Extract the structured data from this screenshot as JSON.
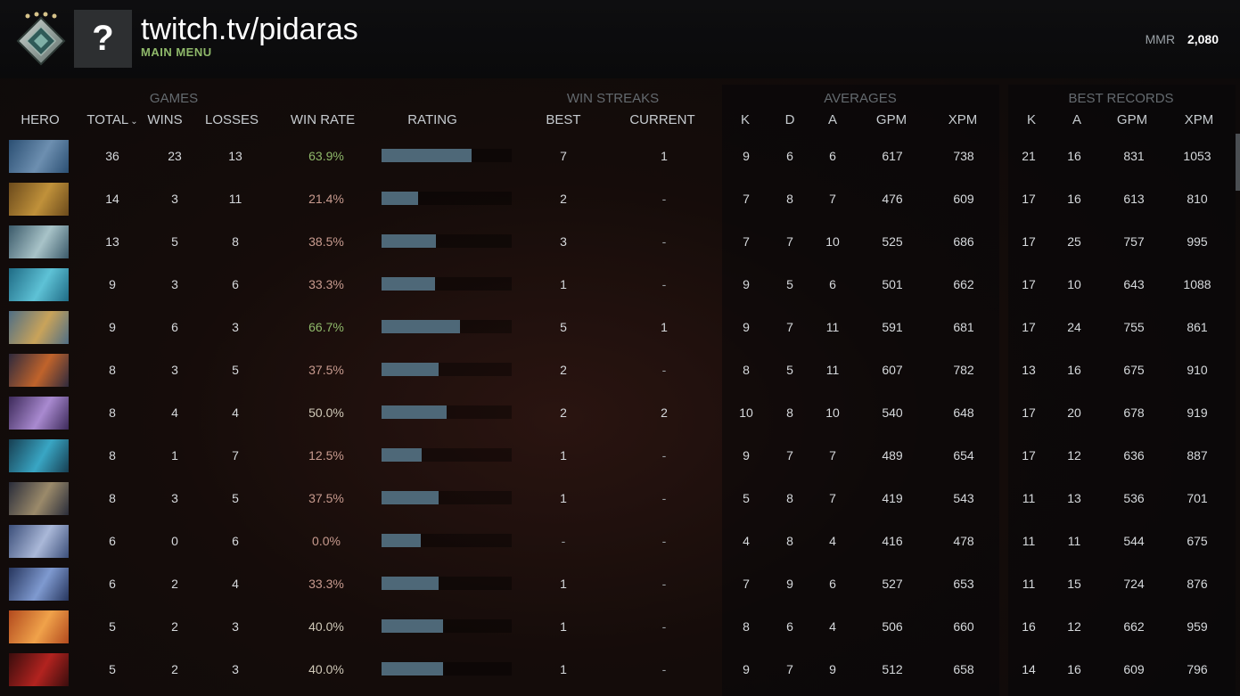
{
  "profile": {
    "username": "twitch.tv/pidaras",
    "menu_link": "MAIN MENU",
    "avatar_glyph": "?",
    "mmr_label": "MMR",
    "mmr_value": "2,080",
    "rank_badge_icon": "rank-medal-icon"
  },
  "groups": {
    "games": "GAMES",
    "win_streaks": "WIN STREAKS",
    "averages": "AVERAGES",
    "best_records": "BEST RECORDS"
  },
  "columns": {
    "hero": "HERO",
    "total": "TOTAL",
    "total_sort_icon": "⌄",
    "wins": "WINS",
    "losses": "LOSSES",
    "win_rate": "WIN RATE",
    "rating": "RATING",
    "best": "BEST",
    "current": "CURRENT",
    "avg_k": "K",
    "avg_d": "D",
    "avg_a": "A",
    "avg_gpm": "GPM",
    "avg_xpm": "XPM",
    "best_k": "K",
    "best_a": "A",
    "best_gpm": "GPM",
    "best_xpm": "XPM"
  },
  "colors": {
    "win_rate_good": "#8fb96a",
    "win_rate_bad": "#c79a8e",
    "rating_bar": "#4e6878"
  },
  "rows": [
    {
      "hero_colors": [
        "#2b4f73",
        "#6d8fb0"
      ],
      "total": "36",
      "wins": "23",
      "losses": "13",
      "win_rate": "63.9%",
      "rating": 0.69,
      "best": "7",
      "current": "1",
      "k": "9",
      "d": "6",
      "a": "6",
      "gpm": "617",
      "xpm": "738",
      "bk": "21",
      "ba": "16",
      "bgpm": "831",
      "bxpm": "1053"
    },
    {
      "hero_colors": [
        "#6b4a1c",
        "#c0913a"
      ],
      "total": "14",
      "wins": "3",
      "losses": "11",
      "win_rate": "21.4%",
      "rating": 0.28,
      "best": "2",
      "current": "-",
      "k": "7",
      "d": "8",
      "a": "7",
      "gpm": "476",
      "xpm": "609",
      "bk": "17",
      "ba": "16",
      "bgpm": "613",
      "bxpm": "810"
    },
    {
      "hero_colors": [
        "#3b5a6a",
        "#a8c3c8"
      ],
      "total": "13",
      "wins": "5",
      "losses": "8",
      "win_rate": "38.5%",
      "rating": 0.42,
      "best": "3",
      "current": "-",
      "k": "7",
      "d": "7",
      "a": "10",
      "gpm": "525",
      "xpm": "686",
      "bk": "17",
      "ba": "25",
      "bgpm": "757",
      "bxpm": "995"
    },
    {
      "hero_colors": [
        "#1f6b85",
        "#5ec2d6"
      ],
      "total": "9",
      "wins": "3",
      "losses": "6",
      "win_rate": "33.3%",
      "rating": 0.41,
      "best": "1",
      "current": "-",
      "k": "9",
      "d": "5",
      "a": "6",
      "gpm": "501",
      "xpm": "662",
      "bk": "17",
      "ba": "10",
      "bgpm": "643",
      "bxpm": "1088"
    },
    {
      "hero_colors": [
        "#4f6e85",
        "#c9a35a"
      ],
      "total": "9",
      "wins": "6",
      "losses": "3",
      "win_rate": "66.7%",
      "rating": 0.6,
      "best": "5",
      "current": "1",
      "k": "9",
      "d": "7",
      "a": "11",
      "gpm": "591",
      "xpm": "681",
      "bk": "17",
      "ba": "24",
      "bgpm": "755",
      "bxpm": "861"
    },
    {
      "hero_colors": [
        "#2f2a3d",
        "#c0632b"
      ],
      "total": "8",
      "wins": "3",
      "losses": "5",
      "win_rate": "37.5%",
      "rating": 0.44,
      "best": "2",
      "current": "-",
      "k": "8",
      "d": "5",
      "a": "11",
      "gpm": "607",
      "xpm": "782",
      "bk": "13",
      "ba": "16",
      "bgpm": "675",
      "bxpm": "910"
    },
    {
      "hero_colors": [
        "#3d2a5a",
        "#a98ad0"
      ],
      "total": "8",
      "wins": "4",
      "losses": "4",
      "win_rate": "50.0%",
      "rating": 0.5,
      "best": "2",
      "current": "2",
      "k": "10",
      "d": "8",
      "a": "10",
      "gpm": "540",
      "xpm": "648",
      "bk": "17",
      "ba": "20",
      "bgpm": "678",
      "bxpm": "919"
    },
    {
      "hero_colors": [
        "#173f52",
        "#39a6c4"
      ],
      "total": "8",
      "wins": "1",
      "losses": "7",
      "win_rate": "12.5%",
      "rating": 0.31,
      "best": "1",
      "current": "-",
      "k": "9",
      "d": "7",
      "a": "7",
      "gpm": "489",
      "xpm": "654",
      "bk": "17",
      "ba": "12",
      "bgpm": "636",
      "bxpm": "887"
    },
    {
      "hero_colors": [
        "#2a2d3a",
        "#9b8a6a"
      ],
      "total": "8",
      "wins": "3",
      "losses": "5",
      "win_rate": "37.5%",
      "rating": 0.44,
      "best": "1",
      "current": "-",
      "k": "5",
      "d": "8",
      "a": "7",
      "gpm": "419",
      "xpm": "543",
      "bk": "11",
      "ba": "13",
      "bgpm": "536",
      "bxpm": "701"
    },
    {
      "hero_colors": [
        "#3c4f7a",
        "#aab8d8"
      ],
      "total": "6",
      "wins": "0",
      "losses": "6",
      "win_rate": "0.0%",
      "rating": 0.3,
      "best": "-",
      "current": "-",
      "k": "4",
      "d": "8",
      "a": "4",
      "gpm": "416",
      "xpm": "478",
      "bk": "11",
      "ba": "11",
      "bgpm": "544",
      "bxpm": "675"
    },
    {
      "hero_colors": [
        "#27365e",
        "#7f9ad0"
      ],
      "total": "6",
      "wins": "2",
      "losses": "4",
      "win_rate": "33.3%",
      "rating": 0.44,
      "best": "1",
      "current": "-",
      "k": "7",
      "d": "9",
      "a": "6",
      "gpm": "527",
      "xpm": "653",
      "bk": "11",
      "ba": "15",
      "bgpm": "724",
      "bxpm": "876"
    },
    {
      "hero_colors": [
        "#b24a1e",
        "#f0a24a"
      ],
      "total": "5",
      "wins": "2",
      "losses": "3",
      "win_rate": "40.0%",
      "rating": 0.47,
      "best": "1",
      "current": "-",
      "k": "8",
      "d": "6",
      "a": "4",
      "gpm": "506",
      "xpm": "660",
      "bk": "16",
      "ba": "12",
      "bgpm": "662",
      "bxpm": "959"
    },
    {
      "hero_colors": [
        "#3a0d0d",
        "#b2231f"
      ],
      "total": "5",
      "wins": "2",
      "losses": "3",
      "win_rate": "40.0%",
      "rating": 0.47,
      "best": "1",
      "current": "-",
      "k": "9",
      "d": "7",
      "a": "9",
      "gpm": "512",
      "xpm": "658",
      "bk": "14",
      "ba": "16",
      "bgpm": "609",
      "bxpm": "796"
    }
  ]
}
